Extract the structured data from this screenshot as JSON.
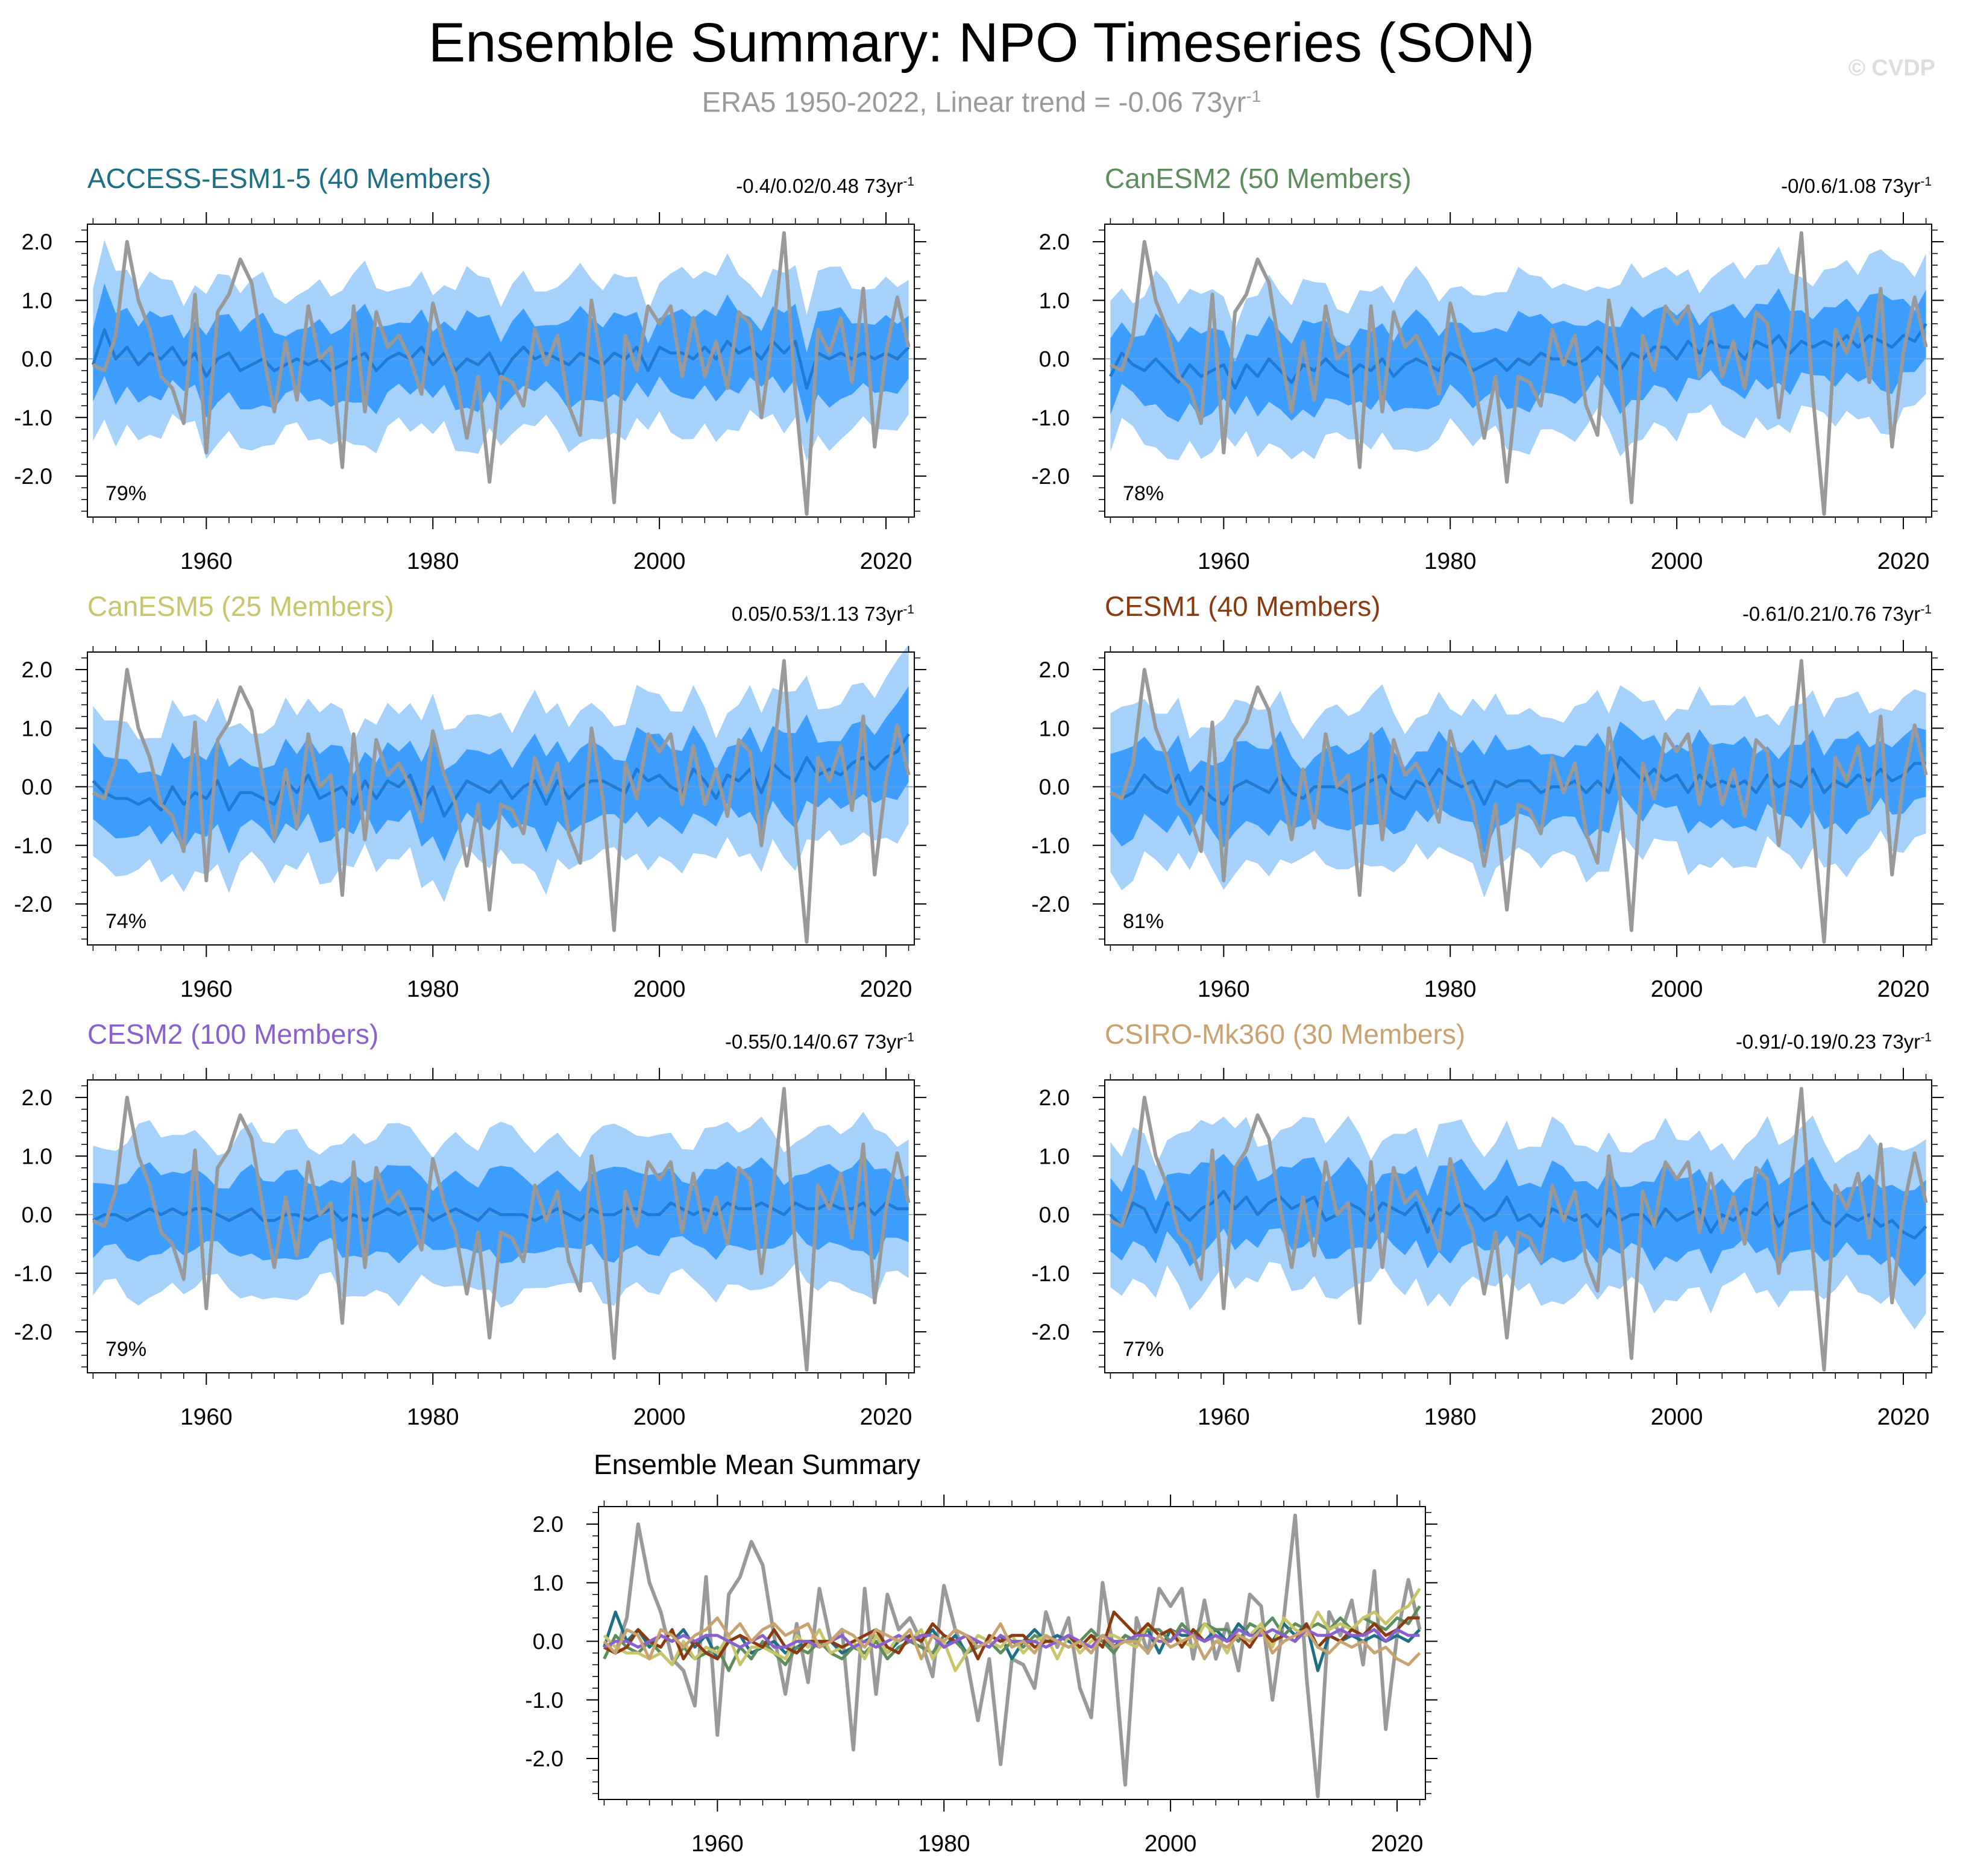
{
  "header": {
    "title": "Ensemble Summary: NPO Timeseries (SON)",
    "subtitle": "ERA5 1950-2022, Linear trend = -0.06 73yr",
    "subtitle_sup": "-1",
    "watermark": "© CVDP"
  },
  "chart_data": {
    "type": "line",
    "observed": {
      "name": "ERA5",
      "color": "#999999",
      "start_year": 1950,
      "values": [
        -0.1,
        -0.2,
        0.4,
        2.0,
        1.0,
        0.5,
        -0.3,
        -0.5,
        -1.1,
        1.1,
        -1.6,
        0.8,
        1.1,
        1.7,
        1.3,
        0.1,
        -0.9,
        0.3,
        -0.7,
        0.9,
        0.0,
        0.2,
        -1.85,
        0.9,
        -0.9,
        0.8,
        0.2,
        0.4,
        0.0,
        -0.6,
        0.95,
        0.2,
        -0.3,
        -1.35,
        -0.3,
        -2.1,
        -0.3,
        -0.4,
        -0.8,
        0.5,
        -0.1,
        0.4,
        -0.8,
        -1.3,
        1.0,
        -0.2,
        -2.45,
        0.4,
        -0.2,
        0.9,
        0.6,
        0.9,
        -0.3,
        0.7,
        -0.3,
        0.3,
        -0.5,
        0.8,
        0.6,
        -1.0,
        0.4,
        2.15,
        -0.6,
        -2.65,
        0.5,
        0.1,
        0.7,
        -0.4,
        1.2,
        -1.5,
        0.1,
        1.05,
        0.2
      ]
    },
    "axes": {
      "ylim": [
        -2.7,
        2.3
      ],
      "yticks": [
        2.0,
        1.0,
        0.0,
        -1.0,
        -2.0
      ],
      "ytick_labels": [
        "2.0",
        "1.0",
        "0.0",
        "-1.0",
        "-2.0"
      ],
      "xlim": [
        1949.5,
        2022.5
      ],
      "xticks": [
        1960,
        1980,
        2000,
        2020
      ],
      "xtick_labels": [
        "1960",
        "1980",
        "2000",
        "2020"
      ]
    },
    "band_colors": {
      "outer": "#a6d1fb",
      "inner": "#3e9eff",
      "mean_line": "#1f7ad4"
    },
    "panels": [
      {
        "name": "ACCESS-ESM1-5 (40 Members)",
        "color": "#1d6f86",
        "trend_text": "-0.4/0.02/0.48 73yr",
        "trend_sup": "-1",
        "percent": "79%",
        "mean": [
          -0.1,
          0.5,
          0.0,
          0.2,
          -0.1,
          0.1,
          0.0,
          0.2,
          -0.1,
          0.1,
          -0.3,
          0.0,
          0.1,
          -0.2,
          -0.1,
          0.0,
          -0.2,
          -0.1,
          0.0,
          -0.1,
          0.0,
          -0.2,
          -0.1,
          0.0,
          0.1,
          -0.2,
          0.0,
          0.1,
          0.0,
          0.2,
          -0.1,
          0.1,
          -0.2,
          0.0,
          -0.1,
          0.1,
          -0.3,
          0.0,
          0.2,
          0.0,
          0.1,
          0.0,
          -0.1,
          0.1,
          0.0,
          -0.1,
          0.1,
          0.0,
          0.2,
          -0.2,
          0.2,
          0.1,
          0.1,
          0.0,
          0.2,
          0.0,
          0.3,
          0.1,
          0.2,
          0.0,
          0.3,
          0.1,
          0.3,
          -0.5,
          0.1,
          0.0,
          0.1,
          0.0,
          0.1,
          0.0,
          0.1,
          0.0,
          0.2
        ]
      },
      {
        "name": "CanESM2 (50 Members)",
        "color": "#5d8c5d",
        "trend_text": "-0/0.6/1.08 73yr",
        "trend_sup": "-1",
        "percent": "78%",
        "mean": [
          -0.3,
          0.1,
          -0.1,
          -0.2,
          0.0,
          -0.2,
          -0.4,
          -0.1,
          -0.3,
          -0.2,
          -0.1,
          -0.5,
          -0.1,
          -0.3,
          0.0,
          -0.2,
          -0.4,
          -0.1,
          -0.2,
          0.0,
          -0.2,
          -0.3,
          -0.1,
          -0.2,
          0.0,
          -0.3,
          -0.1,
          0.0,
          -0.1,
          -0.2,
          0.1,
          0.0,
          -0.2,
          -0.1,
          0.0,
          -0.2,
          0.0,
          -0.1,
          0.1,
          0.0,
          0.0,
          -0.1,
          0.0,
          0.2,
          0.0,
          -0.2,
          0.1,
          0.0,
          0.2,
          0.2,
          0.0,
          0.3,
          0.1,
          0.3,
          0.2,
          0.2,
          0.0,
          0.3,
          0.2,
          0.4,
          0.1,
          0.3,
          0.2,
          0.3,
          0.2,
          0.4,
          0.2,
          0.4,
          0.3,
          0.2,
          0.4,
          0.3,
          0.6
        ]
      },
      {
        "name": "CanESM5 (25 Members)",
        "color": "#c8c46a",
        "trend_text": "0.05/0.53/1.13 73yr",
        "trend_sup": "-1",
        "percent": "74%",
        "mean": [
          0.1,
          -0.1,
          -0.2,
          -0.2,
          -0.3,
          -0.2,
          -0.4,
          0.0,
          -0.3,
          -0.1,
          -0.2,
          0.1,
          -0.4,
          -0.1,
          -0.1,
          -0.2,
          -0.3,
          0.1,
          -0.1,
          0.2,
          -0.2,
          -0.1,
          0.0,
          -0.3,
          0.1,
          -0.2,
          0.1,
          0.0,
          0.2,
          -0.3,
          0.0,
          -0.5,
          -0.2,
          0.1,
          0.0,
          -0.1,
          0.1,
          -0.2,
          0.0,
          0.1,
          -0.3,
          0.1,
          -0.2,
          0.0,
          0.1,
          0.1,
          0.0,
          -0.1,
          0.3,
          0.1,
          0.2,
          0.0,
          -0.1,
          0.3,
          0.1,
          -0.2,
          0.2,
          0.1,
          0.3,
          -0.1,
          0.4,
          0.2,
          0.1,
          0.5,
          0.2,
          0.3,
          0.2,
          0.4,
          0.5,
          0.3,
          0.5,
          0.6,
          0.9
        ]
      },
      {
        "name": "CESM1 (40 Members)",
        "color": "#8b3a0f",
        "trend_text": "-0.61/0.21/0.76 73yr",
        "trend_sup": "-1",
        "percent": "81%",
        "mean": [
          -0.1,
          -0.2,
          -0.1,
          0.2,
          0.0,
          -0.1,
          0.2,
          -0.3,
          0.0,
          -0.2,
          -0.3,
          0.0,
          0.1,
          0.0,
          -0.1,
          0.2,
          -0.1,
          -0.2,
          0.0,
          0.0,
          0.0,
          -0.1,
          0.0,
          0.1,
          0.2,
          -0.1,
          -0.2,
          0.1,
          0.0,
          0.3,
          0.1,
          0.0,
          0.1,
          -0.3,
          0.1,
          0.0,
          0.1,
          0.1,
          -0.1,
          0.0,
          0.0,
          0.1,
          -0.1,
          0.1,
          -0.1,
          0.5,
          0.3,
          0.1,
          0.3,
          0.1,
          0.2,
          -0.1,
          0.2,
          0.0,
          0.1,
          0.0,
          0.1,
          -0.1,
          0.2,
          0.0,
          0.1,
          0.0,
          0.3,
          -0.1,
          0.1,
          0.0,
          0.2,
          0.1,
          0.3,
          0.1,
          0.2,
          0.4,
          0.4
        ]
      },
      {
        "name": "CESM2 (100 Members)",
        "color": "#8a5fd0",
        "trend_text": "-0.55/0.14/0.67 73yr",
        "trend_sup": "-1",
        "percent": "79%",
        "mean": [
          -0.1,
          0.0,
          0.0,
          -0.1,
          0.0,
          0.1,
          0.0,
          0.1,
          0.0,
          0.1,
          0.1,
          0.0,
          -0.1,
          0.0,
          0.1,
          -0.1,
          -0.1,
          0.0,
          0.0,
          -0.1,
          0.0,
          0.1,
          -0.1,
          0.0,
          -0.1,
          0.0,
          0.1,
          0.0,
          0.1,
          0.1,
          -0.1,
          0.0,
          0.1,
          0.0,
          -0.1,
          0.1,
          0.0,
          0.0,
          0.0,
          -0.1,
          0.0,
          0.1,
          0.0,
          -0.1,
          0.1,
          0.0,
          0.0,
          0.1,
          0.1,
          0.0,
          0.0,
          0.2,
          0.1,
          0.0,
          0.1,
          0.0,
          0.2,
          0.1,
          0.1,
          0.2,
          0.1,
          0.0,
          0.2,
          0.1,
          0.1,
          0.2,
          0.1,
          0.1,
          0.2,
          0.0,
          0.2,
          0.1,
          0.1
        ]
      },
      {
        "name": "CSIRO-Mk360 (30 Members)",
        "color": "#c9a36f",
        "trend_text": "-0.91/-0.19/0.23 73yr",
        "trend_sup": "-1",
        "percent": "77%",
        "mean": [
          0.0,
          -0.2,
          0.2,
          0.1,
          -0.3,
          0.2,
          0.1,
          -0.1,
          0.1,
          0.2,
          0.4,
          0.1,
          0.3,
          0.0,
          0.2,
          0.3,
          0.1,
          0.2,
          0.3,
          -0.1,
          0.0,
          0.2,
          0.1,
          -0.1,
          0.2,
          0.1,
          0.0,
          0.2,
          -0.3,
          0.1,
          0.0,
          0.2,
          0.1,
          -0.1,
          0.0,
          0.3,
          -0.1,
          0.0,
          -0.2,
          0.1,
          0.0,
          -0.1,
          0.0,
          -0.2,
          0.1,
          -0.1,
          0.0,
          0.0,
          -0.2,
          0.1,
          -0.1,
          0.0,
          0.1,
          -0.3,
          0.0,
          -0.1,
          0.1,
          0.0,
          0.2,
          -0.2,
          0.0,
          0.1,
          0.2,
          -0.1,
          -0.2,
          0.0,
          -0.1,
          0.0,
          -0.2,
          -0.1,
          -0.3,
          -0.4,
          -0.2
        ]
      }
    ],
    "summary": {
      "title": "Ensemble Mean Summary"
    }
  }
}
